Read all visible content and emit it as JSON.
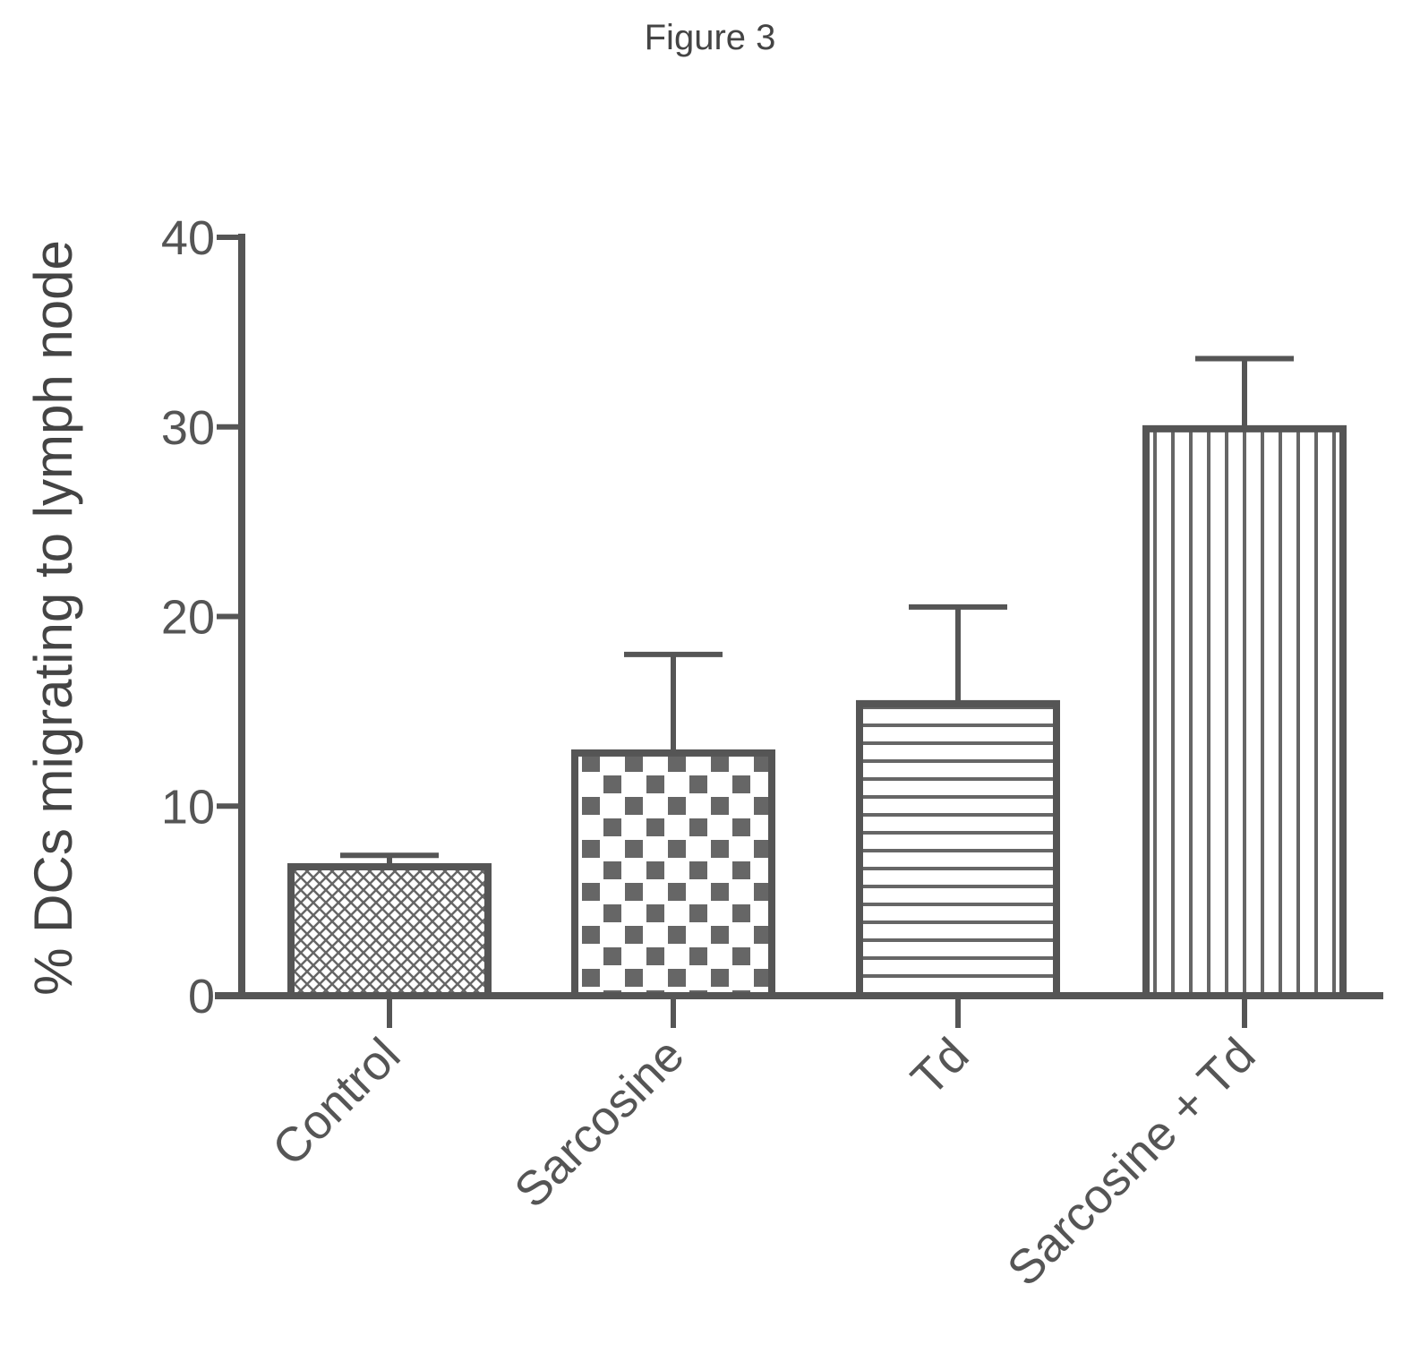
{
  "figure": {
    "title": "Figure 3"
  },
  "chart_data": {
    "type": "bar",
    "title": "",
    "xlabel": "",
    "ylabel": "% DCs migrating to lymph node",
    "ylim": [
      0,
      40
    ],
    "yticks": [
      0,
      10,
      20,
      30,
      40
    ],
    "categories": [
      "Control",
      "Sarcosine",
      "Td",
      "Sarcosine + Td"
    ],
    "values": [
      6.8,
      12.8,
      15.4,
      29.9
    ],
    "error_bars": [
      0.6,
      5.2,
      5.1,
      3.7
    ],
    "patterns": [
      "crosshatch",
      "checker",
      "horizontal-lines",
      "vertical-lines"
    ],
    "grid": false,
    "legend": "none",
    "colors": {
      "ink": "#555555",
      "background": "#ffffff"
    }
  }
}
